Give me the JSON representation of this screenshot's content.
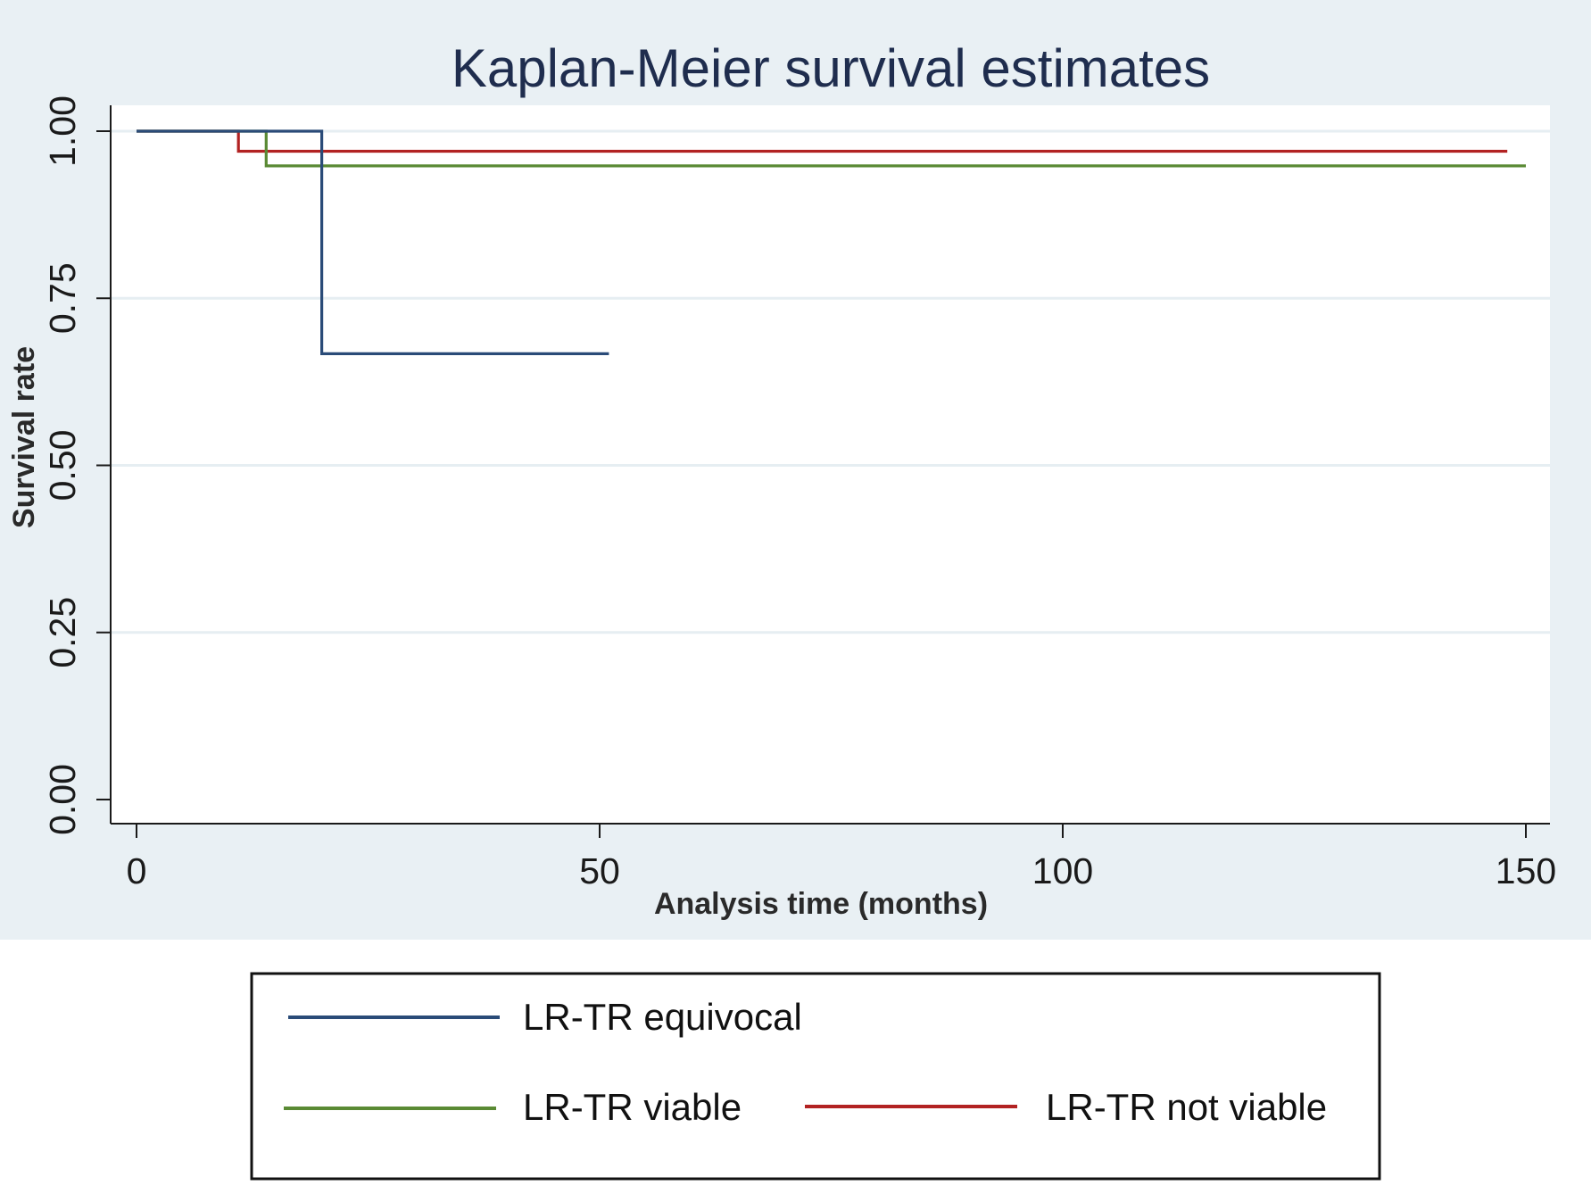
{
  "chart_data": {
    "type": "line",
    "title": "Kaplan-Meier survival estimates",
    "xlabel": "Analysis time (months)",
    "ylabel": "Survival rate",
    "xlim": [
      0,
      150
    ],
    "ylim": [
      0,
      1
    ],
    "x_ticks": [
      "0",
      "50",
      "100",
      "150"
    ],
    "y_ticks": [
      "0.00",
      "0.25",
      "0.50",
      "0.75",
      "1.00"
    ],
    "grid": true,
    "legend_position": "bottom",
    "series": [
      {
        "name": "LR-TR equivocal",
        "color": "#2a4b78",
        "x": [
          0,
          20,
          20,
          51
        ],
        "y": [
          1.0,
          1.0,
          0.667,
          0.667
        ]
      },
      {
        "name": "LR-TR viable",
        "color": "#5a8a34",
        "x": [
          0,
          14,
          14,
          150
        ],
        "y": [
          1.0,
          1.0,
          0.948,
          0.948
        ]
      },
      {
        "name": "LR-TR not viable",
        "color": "#b22222",
        "x": [
          0,
          11,
          11,
          148
        ],
        "y": [
          1.0,
          1.0,
          0.97,
          0.97
        ]
      }
    ]
  }
}
